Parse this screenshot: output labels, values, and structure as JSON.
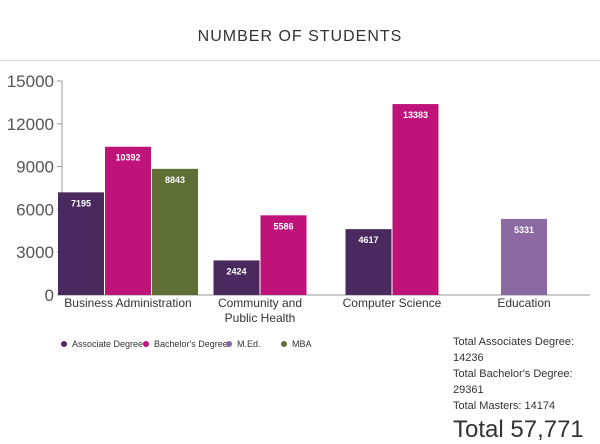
{
  "chart_data": {
    "type": "bar",
    "title": "NUMBER OF STUDENTS",
    "categories": [
      {
        "lines": [
          "Business Administration"
        ]
      },
      {
        "lines": [
          "Community and",
          "Public Health"
        ]
      },
      {
        "lines": [
          "Computer Science"
        ]
      },
      {
        "lines": [
          "Education"
        ]
      }
    ],
    "series": [
      {
        "name": "Associate Degree",
        "color": "#4a2a5e",
        "values": [
          7195,
          2424,
          4617,
          null
        ]
      },
      {
        "name": "Bachelor's Degree",
        "color": "#c0137a",
        "values": [
          10392,
          5586,
          13383,
          null
        ]
      },
      {
        "name": "M.Ed.",
        "color": "#8a6aa0",
        "values": [
          null,
          null,
          null,
          5331
        ]
      },
      {
        "name": "MBA",
        "color": "#5e6e35",
        "values": [
          8843,
          null,
          null,
          null
        ]
      }
    ],
    "ylim": [
      0,
      15000
    ],
    "yticks": [
      0,
      3000,
      6000,
      9000,
      12000,
      15000
    ],
    "legend_position": "bottom-left",
    "grid": false
  },
  "totals": {
    "associates": "Total Associates Degree: 14236",
    "bachelors": "Total Bachelor's Degree: 29361",
    "masters": "Total Masters: 14174",
    "grand_label": "Total",
    "grand_value": "57,771"
  }
}
